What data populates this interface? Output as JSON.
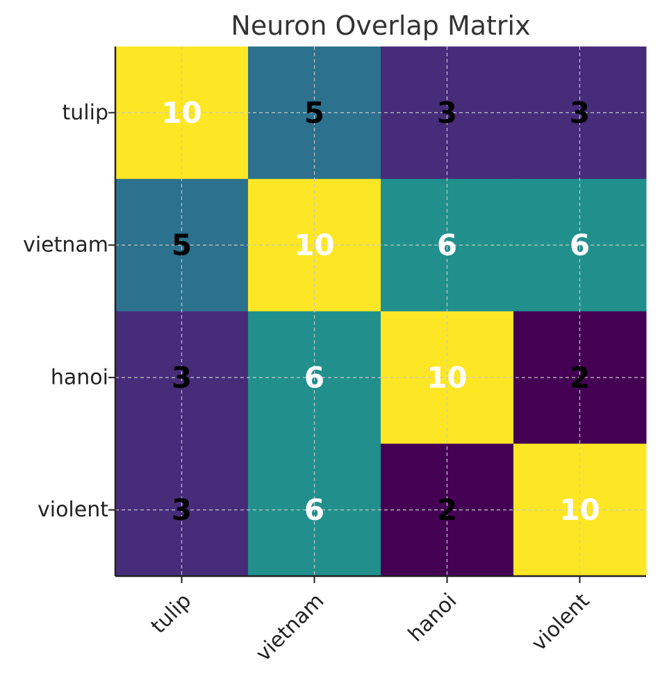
{
  "chart_data": {
    "type": "heatmap",
    "title": "Neuron Overlap Matrix",
    "xlabel": "",
    "ylabel": "",
    "x_categories": [
      "tulip",
      "vietnam",
      "hanoi",
      "violent"
    ],
    "y_categories": [
      "tulip",
      "vietnam",
      "hanoi",
      "violent"
    ],
    "values": [
      [
        10,
        5,
        3,
        3
      ],
      [
        5,
        10,
        6,
        6
      ],
      [
        3,
        6,
        10,
        2
      ],
      [
        3,
        6,
        2,
        10
      ]
    ],
    "colormap": "viridis",
    "value_range": [
      2,
      10
    ],
    "grid": true,
    "annotations": true,
    "colorbar": false
  }
}
